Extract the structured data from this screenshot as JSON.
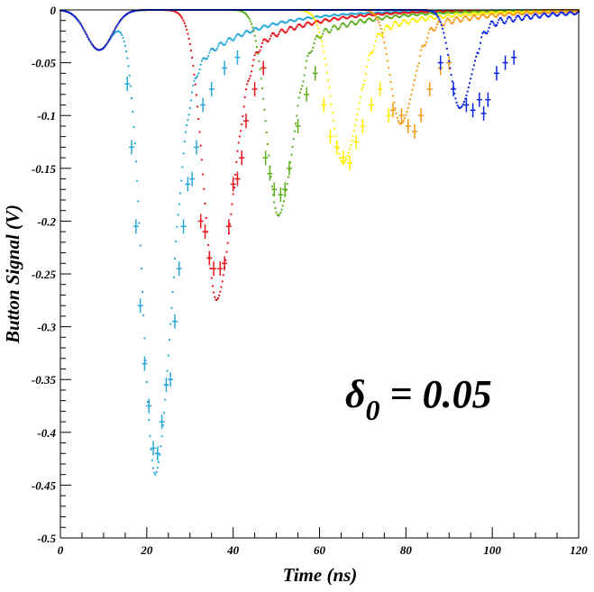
{
  "chart_data": {
    "type": "scatter",
    "xlabel": "Time (ns)",
    "ylabel": "Button Signal (V)",
    "xlim": [
      0,
      120
    ],
    "ylim": [
      -0.5,
      0
    ],
    "grid": false,
    "x_ticks": [
      "0",
      "20",
      "40",
      "60",
      "80",
      "100",
      "120"
    ],
    "y_ticks": [
      "0",
      "-0.05",
      "-0.1",
      "-0.15",
      "-0.2",
      "-0.25",
      "-0.3",
      "-0.35",
      "-0.4",
      "-0.45",
      "-0.5"
    ],
    "annotation": {
      "symbol": "δ",
      "subscript": "0",
      "text": " = 0.05"
    },
    "series": [
      {
        "color": "#29A9D9",
        "peak_time": 22,
        "peak_value": -0.44,
        "width": 3.0,
        "measured": [
          [
            15.5,
            -0.07
          ],
          [
            16.5,
            -0.13
          ],
          [
            17.5,
            -0.205
          ],
          [
            18.5,
            -0.28
          ],
          [
            19.5,
            -0.335
          ],
          [
            20.5,
            -0.375
          ],
          [
            21.5,
            -0.415
          ],
          [
            22.5,
            -0.42
          ],
          [
            23.5,
            -0.39
          ],
          [
            24.5,
            -0.355
          ],
          [
            25.5,
            -0.35
          ],
          [
            26.5,
            -0.295
          ],
          [
            27.5,
            -0.245
          ],
          [
            28.5,
            -0.205
          ],
          [
            29.5,
            -0.165
          ],
          [
            30.5,
            -0.16
          ],
          [
            31.5,
            -0.13
          ],
          [
            33,
            -0.09
          ],
          [
            35,
            -0.075
          ],
          [
            38,
            -0.055
          ],
          [
            41,
            -0.045
          ]
        ]
      },
      {
        "color": "#E8141C",
        "peak_time": 36.2,
        "peak_value": -0.275,
        "width": 3.0,
        "measured": [
          [
            32.5,
            -0.2
          ],
          [
            33.5,
            -0.21
          ],
          [
            34.5,
            -0.235
          ],
          [
            35.5,
            -0.245
          ],
          [
            37,
            -0.245
          ],
          [
            38,
            -0.24
          ],
          [
            39,
            -0.205
          ],
          [
            40,
            -0.165
          ],
          [
            41,
            -0.16
          ],
          [
            42,
            -0.14
          ],
          [
            43,
            -0.105
          ],
          [
            45,
            -0.075
          ],
          [
            47,
            -0.055
          ]
        ]
      },
      {
        "color": "#5FAE1E",
        "peak_time": 50.5,
        "peak_value": -0.195,
        "width": 2.7,
        "measured": [
          [
            47.5,
            -0.14
          ],
          [
            48.5,
            -0.155
          ],
          [
            49.5,
            -0.17
          ],
          [
            51,
            -0.175
          ],
          [
            52,
            -0.17
          ],
          [
            53,
            -0.15
          ],
          [
            55,
            -0.11
          ],
          [
            57,
            -0.08
          ],
          [
            59,
            -0.06
          ]
        ]
      },
      {
        "color": "#FFEE00",
        "peak_time": 65.5,
        "peak_value": -0.145,
        "width": 2.8,
        "measured": [
          [
            61,
            -0.09
          ],
          [
            62.5,
            -0.12
          ],
          [
            64,
            -0.13
          ],
          [
            65.5,
            -0.14
          ],
          [
            67,
            -0.145
          ],
          [
            68.5,
            -0.125
          ],
          [
            70,
            -0.11
          ],
          [
            72,
            -0.09
          ],
          [
            74,
            -0.075
          ],
          [
            76,
            -0.1
          ]
        ]
      },
      {
        "color": "#F79A12",
        "peak_time": 78.8,
        "peak_value": -0.108,
        "width": 2.4,
        "measured": [
          [
            77,
            -0.095
          ],
          [
            79,
            -0.1
          ],
          [
            80.5,
            -0.11
          ],
          [
            82,
            -0.115
          ],
          [
            83.5,
            -0.1
          ],
          [
            85.5,
            -0.075
          ],
          [
            88,
            -0.055
          ],
          [
            90,
            -0.05
          ]
        ]
      },
      {
        "color": "#0A24E3",
        "peak_time": 92.5,
        "peak_value": -0.093,
        "width": 2.2,
        "measured": [
          [
            88,
            -0.05
          ],
          [
            91,
            -0.075
          ],
          [
            94,
            -0.09
          ],
          [
            95.5,
            -0.095
          ],
          [
            97,
            -0.085
          ],
          [
            98,
            -0.098
          ],
          [
            99,
            -0.085
          ],
          [
            101,
            -0.06
          ],
          [
            103,
            -0.05
          ],
          [
            105,
            -0.045
          ]
        ]
      }
    ]
  }
}
